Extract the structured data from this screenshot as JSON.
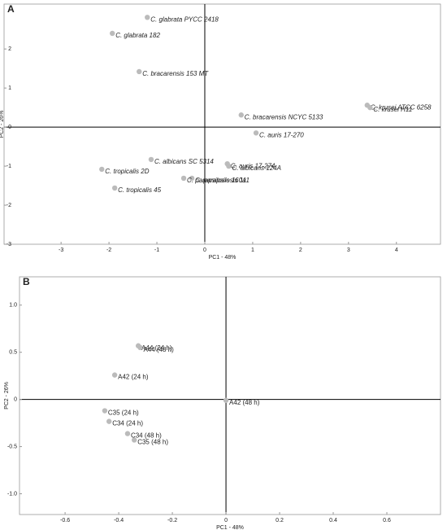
{
  "chart_data": [
    {
      "type": "scatter",
      "panel": "A",
      "xlabel": "PC1 - 48%",
      "ylabel": "PC2 - 26%",
      "xlim": [
        -4.19,
        4.92
      ],
      "ylim": [
        -3,
        3.15
      ],
      "xticks": [
        -3,
        -2,
        -1,
        0,
        1,
        2,
        3,
        4
      ],
      "yticks": [
        -3,
        -2,
        -1,
        0,
        1,
        2
      ],
      "color": "#bbbbbb",
      "point_labels": [
        "C. glabrata PYCC 2418",
        "C. glabrata 182",
        "C. bracarensis 153 MT",
        "C. krusei ATCC 6258",
        "C. krusei H11",
        "C. bracarensis NCYC 5133",
        "C. auris 17-270",
        "C. albicans SC 5314",
        "C. auris 17-274",
        "C. albicans 124A",
        "C. tropicalis 2D",
        "C. parapsilosis 111",
        "C. parapsilosis 160a",
        "C. tropicalis 45"
      ],
      "x": [
        -1.2,
        -1.93,
        -1.37,
        3.39,
        3.45,
        0.76,
        1.07,
        -1.12,
        0.47,
        0.5,
        -2.15,
        -0.27,
        -0.44,
        -1.88
      ],
      "values": [
        2.81,
        2.4,
        1.42,
        0.56,
        0.5,
        0.31,
        -0.15,
        -0.83,
        -0.94,
        -1.0,
        -1.08,
        -1.31,
        -1.31,
        -1.56
      ]
    },
    {
      "type": "scatter",
      "panel": "B",
      "xlabel": "PC1 - 48%",
      "ylabel": "PC2 - 26%",
      "xlim": [
        -0.77,
        0.8
      ],
      "ylim": [
        -1.22,
        1.3
      ],
      "xticks": [
        -0.6,
        -0.4,
        -0.2,
        0,
        0.2,
        0.4,
        0.6
      ],
      "yticks": [
        {
          "value": -1,
          "label": "-1.0"
        },
        -0.5,
        0,
        0.5,
        {
          "value": 1,
          "label": "1.0"
        }
      ],
      "color": "#bbbbbb",
      "point_labels": [
        "A44 (24 h)",
        "A44 (48 h)",
        "A42 (24 h)",
        "A42 (48 h)",
        "C35 (24 h)",
        "C34 (24 h)",
        "C34 (48 h)",
        "C35  (48 h)"
      ],
      "x": [
        -0.327,
        -0.32,
        -0.415,
        0.0,
        -0.452,
        -0.436,
        -0.367,
        -0.342
      ],
      "values": [
        0.569,
        0.55,
        0.259,
        -0.01,
        -0.12,
        -0.233,
        -0.362,
        -0.43
      ]
    }
  ]
}
